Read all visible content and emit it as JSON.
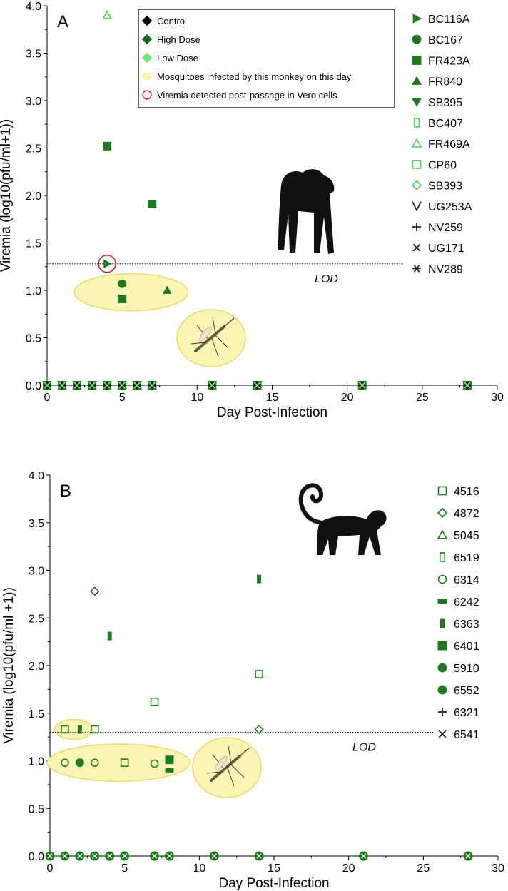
{
  "chart_data": [
    {
      "panel_label": "A",
      "type": "scatter",
      "xlabel": "Day Post-Infection",
      "ylabel": "Viremia (log10(pfu/ml+1))",
      "xlim": [
        0,
        30
      ],
      "ylim": [
        0,
        4.0
      ],
      "xticks": [
        "0",
        "5",
        "10",
        "15",
        "20",
        "25",
        "30"
      ],
      "yticks": [
        "0.0",
        "0.5",
        "1.0",
        "1.5",
        "2.0",
        "2.5",
        "3.0",
        "3.5",
        "4.0"
      ],
      "lod": 1.28,
      "lod_label": "LOD",
      "legend_box": [
        {
          "label": "Control",
          "symbol": "diamond",
          "color": "#000000"
        },
        {
          "label": "High Dose",
          "symbol": "diamond",
          "color": "#1e6b1e"
        },
        {
          "label": "Low Dose",
          "symbol": "diamond",
          "color": "#6ee86e"
        },
        {
          "label": "Mosquitoes infected by this monkey on this day",
          "symbol": "ellipse",
          "color": "#fbf3b0"
        },
        {
          "label": "Viremia detected post-passage in Vero cells",
          "symbol": "ring",
          "color": "#c0202a"
        }
      ],
      "series_legend": [
        {
          "name": "BC116A",
          "symbol": "tri-right",
          "color": "#1e7a1e"
        },
        {
          "name": "BC167",
          "symbol": "circle",
          "color": "#1e7a1e"
        },
        {
          "name": "FR423A",
          "symbol": "square",
          "color": "#1e7a1e"
        },
        {
          "name": "FR840",
          "symbol": "tri-up",
          "color": "#1e7a1e"
        },
        {
          "name": "SB395",
          "symbol": "tri-down",
          "color": "#1e7a1e"
        },
        {
          "name": "BC407",
          "symbol": "rect-open",
          "color": "#55cc55"
        },
        {
          "name": "FR469A",
          "symbol": "tri-up-open",
          "color": "#55cc55"
        },
        {
          "name": "CP60",
          "symbol": "square-open",
          "color": "#55cc55"
        },
        {
          "name": "SB393",
          "symbol": "diamond-open",
          "color": "#55cc55"
        },
        {
          "name": "UG253A",
          "symbol": "vee",
          "color": "#222222"
        },
        {
          "name": "NV259",
          "symbol": "plus",
          "color": "#222222"
        },
        {
          "name": "UG171",
          "symbol": "x",
          "color": "#222222"
        },
        {
          "name": "NV289",
          "symbol": "star",
          "color": "#222222"
        }
      ],
      "points": [
        {
          "series": "FR469A",
          "x": 4,
          "y": 3.9
        },
        {
          "series": "FR423A",
          "x": 4,
          "y": 2.52
        },
        {
          "series": "FR423A",
          "x": 7,
          "y": 1.91
        },
        {
          "series": "BC116A",
          "x": 4,
          "y": 1.28,
          "vero": true
        },
        {
          "series": "BC167",
          "x": 5,
          "y": 1.07
        },
        {
          "series": "FR423A",
          "x": 5,
          "y": 0.91
        },
        {
          "series": "FR840",
          "x": 8,
          "y": 1.0
        }
      ],
      "baseline_days": [
        0,
        1,
        2,
        3,
        4,
        5,
        6,
        7,
        11,
        14,
        21,
        28
      ],
      "mosquito_ellipses": [
        {
          "x_from": 2,
          "x_to": 9,
          "y": 0.98
        }
      ]
    },
    {
      "panel_label": "B",
      "type": "scatter",
      "xlabel": "Day Post-Infection",
      "ylabel": "Viremia (log10(pfu/ml +1))",
      "xlim": [
        0,
        30
      ],
      "ylim": [
        0,
        4.0
      ],
      "xticks": [
        "0",
        "5",
        "10",
        "15",
        "20",
        "25",
        "30"
      ],
      "yticks": [
        "0.0",
        "0.5",
        "1.0",
        "1.5",
        "2.0",
        "2.5",
        "3.0",
        "3.5",
        "4.0"
      ],
      "lod": 1.3,
      "lod_label": "LOD",
      "series_legend": [
        {
          "name": "4516",
          "symbol": "square-open",
          "color": "#1e7a1e"
        },
        {
          "name": "4872",
          "symbol": "diamond-open",
          "color": "#1e7a1e"
        },
        {
          "name": "5045",
          "symbol": "tri-up-open",
          "color": "#1e7a1e"
        },
        {
          "name": "6519",
          "symbol": "rect-open",
          "color": "#1e7a1e"
        },
        {
          "name": "6314",
          "symbol": "circle-open",
          "color": "#1e7a1e"
        },
        {
          "name": "6242",
          "symbol": "hbar",
          "color": "#1e7a1e"
        },
        {
          "name": "6363",
          "symbol": "vbar",
          "color": "#1e7a1e"
        },
        {
          "name": "6401",
          "symbol": "square",
          "color": "#1e7a1e"
        },
        {
          "name": "5910",
          "symbol": "circle",
          "color": "#1e7a1e"
        },
        {
          "name": "6552",
          "symbol": "circle",
          "color": "#1e7a1e"
        },
        {
          "name": "6321",
          "symbol": "plus",
          "color": "#222222"
        },
        {
          "name": "6541",
          "symbol": "x",
          "color": "#222222"
        }
      ],
      "points": [
        {
          "series": "4872",
          "x": 3,
          "y": 2.78
        },
        {
          "series": "6363",
          "x": 4,
          "y": 2.31
        },
        {
          "series": "6363",
          "x": 14,
          "y": 2.91
        },
        {
          "series": "4516",
          "x": 14,
          "y": 1.91
        },
        {
          "series": "4516",
          "x": 7,
          "y": 1.62
        },
        {
          "series": "4516",
          "x": 1,
          "y": 1.33
        },
        {
          "series": "6363",
          "x": 2,
          "y": 1.33
        },
        {
          "series": "4516",
          "x": 3,
          "y": 1.33
        },
        {
          "series": "4872",
          "x": 14,
          "y": 1.33
        },
        {
          "series": "6314",
          "x": 1,
          "y": 0.98
        },
        {
          "series": "5910",
          "x": 2,
          "y": 0.98
        },
        {
          "series": "6314",
          "x": 3,
          "y": 0.98
        },
        {
          "series": "4516",
          "x": 5,
          "y": 0.98
        },
        {
          "series": "6314",
          "x": 7,
          "y": 0.97
        },
        {
          "series": "6401",
          "x": 8,
          "y": 1.01
        },
        {
          "series": "6242",
          "x": 8,
          "y": 0.9
        }
      ],
      "baseline_days": [
        0,
        1,
        2,
        3,
        4,
        5,
        7,
        8,
        11,
        14,
        21,
        28
      ],
      "mosquito_ellipses": [
        {
          "x_from": 0.5,
          "x_to": 2.5,
          "y": 1.33
        },
        {
          "x_from": 0,
          "x_to": 9,
          "y": 0.98
        }
      ]
    }
  ]
}
